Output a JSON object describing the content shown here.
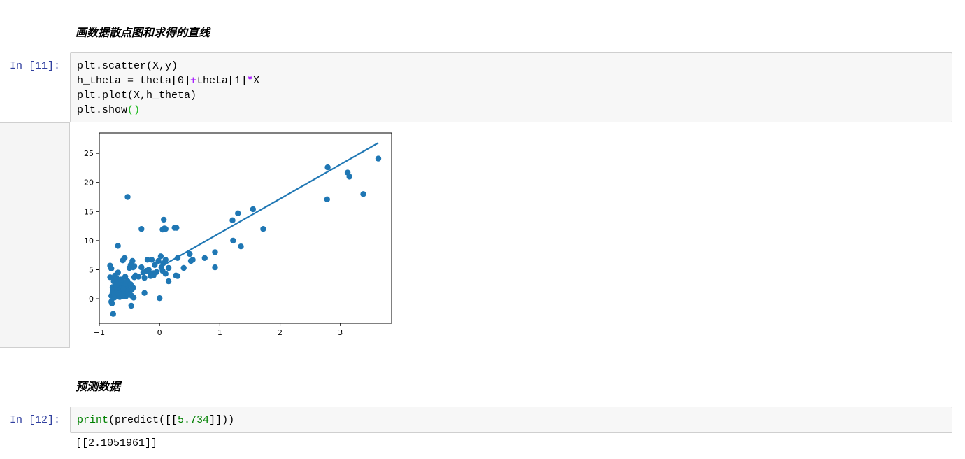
{
  "cells": {
    "heading1": "画数据散点图和求得的直线",
    "cell11": {
      "prompt": "In  [11]:",
      "lines": {
        "l1_text": "plt.scatter(X,y)",
        "l2_a": "h_theta = theta[0]",
        "l2_op1": "+",
        "l2_b": "theta[1]",
        "l2_op2": "*",
        "l2_c": "X",
        "l3_text": "plt.plot(X,h_theta)",
        "l4_a": "plt.show",
        "l4_paren": "()"
      }
    },
    "heading2": "预测数据",
    "cell12": {
      "prompt": "In  [12]:",
      "print_kw": "print",
      "open": "(predict([[",
      "num": "5.734",
      "close": "]]))",
      "output": "[[2.1051961]]"
    }
  },
  "colors": {
    "scatter": "#1f77b4",
    "line": "#1f77b4",
    "prompt": "#303f9f"
  },
  "chart_data": {
    "type": "scatter",
    "xlim": [
      -1.0,
      3.85
    ],
    "ylim": [
      -4.2,
      28.5
    ],
    "xticks": [
      -1,
      0,
      1,
      2,
      3
    ],
    "yticks": [
      0,
      5,
      10,
      15,
      20,
      25
    ],
    "xtick_labels": [
      "−1",
      "0",
      "1",
      "2",
      "3"
    ],
    "ytick_labels": [
      "0",
      "5",
      "10",
      "15",
      "20",
      "25"
    ],
    "line": {
      "x": [
        0.05,
        3.63
      ],
      "y": [
        5.7,
        26.8
      ]
    },
    "points": {
      "x": [
        -0.82,
        -0.8,
        -0.79,
        -0.78,
        -0.77,
        -0.76,
        -0.75,
        -0.74,
        -0.73,
        -0.72,
        -0.71,
        -0.7,
        -0.69,
        -0.68,
        -0.67,
        -0.66,
        -0.65,
        -0.64,
        -0.63,
        -0.62,
        -0.61,
        -0.6,
        -0.59,
        -0.58,
        -0.57,
        -0.56,
        -0.55,
        -0.54,
        -0.53,
        -0.52,
        -0.5,
        -0.49,
        -0.48,
        -0.47,
        -0.46,
        -0.45,
        -0.44,
        -0.43,
        -0.42,
        -0.4,
        -0.35,
        -0.3,
        -0.27,
        -0.25,
        -0.22,
        -0.2,
        -0.18,
        -0.15,
        -0.13,
        -0.1,
        -0.08,
        -0.05,
        -0.02,
        0.0,
        0.02,
        0.05,
        0.08,
        0.1,
        0.15,
        0.25,
        0.3,
        0.4,
        0.5,
        0.55,
        0.75,
        0.92,
        1.22,
        1.3,
        1.35,
        1.55,
        1.72,
        2.78,
        2.79,
        3.12,
        3.15,
        3.38,
        3.63,
        -0.82,
        -0.8,
        -0.78,
        -0.75,
        -0.72,
        -0.7,
        -0.68,
        -0.66,
        -0.64,
        -0.62,
        -0.6,
        -0.58,
        -0.55,
        -0.52,
        -0.5,
        -0.48,
        -0.46,
        -0.44,
        -0.42,
        0.03,
        0.07,
        0.1,
        -0.53,
        -0.69,
        -0.61,
        -0.3,
        0.28,
        0.27,
        0.06,
        0.1,
        1.21,
        0.92,
        -0.77,
        -0.8,
        -0.48,
        0.15,
        0.52,
        -0.25,
        -0.15,
        0.3,
        0.05,
        -0.1
      ],
      "y": [
        5.7,
        0.5,
        -0.8,
        2.0,
        1.5,
        3.0,
        0.2,
        4.0,
        2.5,
        1.2,
        3.5,
        0.8,
        4.5,
        2.8,
        1.0,
        0.3,
        2.2,
        1.8,
        0.6,
        3.2,
        1.4,
        0.9,
        2.6,
        1.1,
        3.8,
        0.4,
        2.0,
        1.6,
        3.0,
        0.7,
        5.3,
        1.3,
        2.4,
        -1.2,
        0.5,
        6.5,
        1.9,
        0.2,
        5.6,
        4.0,
        3.8,
        5.4,
        4.5,
        3.6,
        4.8,
        6.7,
        5.0,
        4.2,
        6.7,
        4.4,
        5.8,
        4.6,
        6.5,
        0.1,
        7.3,
        11.9,
        12.1,
        4.3,
        5.3,
        12.2,
        7.0,
        5.3,
        7.7,
        6.7,
        7.0,
        8.0,
        10.0,
        14.7,
        9.0,
        15.4,
        12.0,
        17.1,
        22.6,
        21.7,
        21.0,
        18.0,
        24.1,
        3.7,
        5.2,
        1.0,
        0.8,
        2.2,
        1.5,
        0.9,
        2.7,
        3.3,
        0.4,
        1.7,
        7.0,
        2.8,
        1.4,
        0.8,
        2.5,
        1.6,
        5.4,
        3.7,
        5.4,
        13.6,
        12.0,
        17.5,
        9.1,
        6.6,
        12.0,
        12.2,
        4.0,
        6.1,
        6.7,
        13.5,
        5.4,
        -2.6,
        -0.5,
        5.8,
        3.0,
        6.5,
        1.0,
        3.9,
        3.9,
        4.8,
        4.0
      ]
    }
  }
}
